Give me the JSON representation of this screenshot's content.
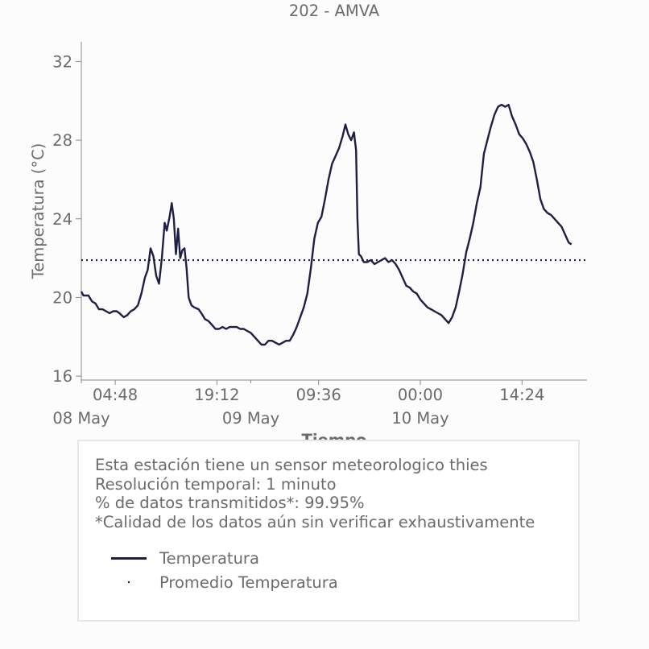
{
  "chart_data": {
    "type": "line",
    "title": "202 - AMVA",
    "xlabel": "Tiempo",
    "ylabel": "Temperatura (°C)",
    "ylim": [
      15.8,
      33.0
    ],
    "yticks": [
      16,
      20,
      24,
      28,
      32
    ],
    "xlim_hours": [
      0.0,
      71.6
    ],
    "xticks": [
      {
        "hour": 4.8,
        "label": "04:48"
      },
      {
        "hour": 19.2,
        "label": "19:12"
      },
      {
        "hour": 33.6,
        "label": "09:36"
      },
      {
        "hour": 48.0,
        "label": "00:00"
      },
      {
        "hour": 62.4,
        "label": "14:24"
      }
    ],
    "date_labels": [
      {
        "hour": 0,
        "label": "08 May"
      },
      {
        "hour": 24,
        "label": "09 May"
      },
      {
        "hour": 48,
        "label": "10 May"
      }
    ],
    "grid": false,
    "series": [
      {
        "name": "Temperatura",
        "color": "#1f1f45",
        "points": [
          [
            0.0,
            20.3
          ],
          [
            0.3,
            20.1
          ],
          [
            1.0,
            20.1
          ],
          [
            1.5,
            19.8
          ],
          [
            2.0,
            19.7
          ],
          [
            2.5,
            19.4
          ],
          [
            3.0,
            19.4
          ],
          [
            3.5,
            19.3
          ],
          [
            4.0,
            19.2
          ],
          [
            4.5,
            19.3
          ],
          [
            5.0,
            19.3
          ],
          [
            5.4,
            19.2
          ],
          [
            6.0,
            19.0
          ],
          [
            6.5,
            19.1
          ],
          [
            7.0,
            19.3
          ],
          [
            7.5,
            19.4
          ],
          [
            8.0,
            19.6
          ],
          [
            8.5,
            20.2
          ],
          [
            9.0,
            21.0
          ],
          [
            9.4,
            21.4
          ],
          [
            9.8,
            22.5
          ],
          [
            10.2,
            22.1
          ],
          [
            10.6,
            21.1
          ],
          [
            11.0,
            20.7
          ],
          [
            11.4,
            22.0
          ],
          [
            11.8,
            23.8
          ],
          [
            12.1,
            23.4
          ],
          [
            12.5,
            24.1
          ],
          [
            12.8,
            24.8
          ],
          [
            13.1,
            24.0
          ],
          [
            13.4,
            22.2
          ],
          [
            13.7,
            23.5
          ],
          [
            14.0,
            22.0
          ],
          [
            14.3,
            22.4
          ],
          [
            14.6,
            22.5
          ],
          [
            14.9,
            21.5
          ],
          [
            15.2,
            20.0
          ],
          [
            15.6,
            19.6
          ],
          [
            16.0,
            19.5
          ],
          [
            16.6,
            19.4
          ],
          [
            17.0,
            19.2
          ],
          [
            17.5,
            18.9
          ],
          [
            18.0,
            18.8
          ],
          [
            18.5,
            18.6
          ],
          [
            19.0,
            18.4
          ],
          [
            19.5,
            18.4
          ],
          [
            20.0,
            18.5
          ],
          [
            20.5,
            18.4
          ],
          [
            21.0,
            18.5
          ],
          [
            21.5,
            18.5
          ],
          [
            22.0,
            18.5
          ],
          [
            22.5,
            18.4
          ],
          [
            23.0,
            18.4
          ],
          [
            23.5,
            18.3
          ],
          [
            24.0,
            18.2
          ],
          [
            24.5,
            18.0
          ],
          [
            25.0,
            17.8
          ],
          [
            25.5,
            17.6
          ],
          [
            26.0,
            17.6
          ],
          [
            26.5,
            17.8
          ],
          [
            27.0,
            17.8
          ],
          [
            27.5,
            17.7
          ],
          [
            28.0,
            17.6
          ],
          [
            28.5,
            17.7
          ],
          [
            29.0,
            17.8
          ],
          [
            29.5,
            17.8
          ],
          [
            30.0,
            18.1
          ],
          [
            30.5,
            18.5
          ],
          [
            31.0,
            19.0
          ],
          [
            31.5,
            19.5
          ],
          [
            32.0,
            20.2
          ],
          [
            32.5,
            21.5
          ],
          [
            33.0,
            23.0
          ],
          [
            33.5,
            23.8
          ],
          [
            34.0,
            24.1
          ],
          [
            34.5,
            25.0
          ],
          [
            35.0,
            26.0
          ],
          [
            35.5,
            26.8
          ],
          [
            36.0,
            27.2
          ],
          [
            36.5,
            27.6
          ],
          [
            37.0,
            28.2
          ],
          [
            37.4,
            28.8
          ],
          [
            37.8,
            28.3
          ],
          [
            38.2,
            28.0
          ],
          [
            38.6,
            28.4
          ],
          [
            38.9,
            27.5
          ],
          [
            39.1,
            24.0
          ],
          [
            39.3,
            22.2
          ],
          [
            39.6,
            22.1
          ],
          [
            40.0,
            21.8
          ],
          [
            40.5,
            21.8
          ],
          [
            41.0,
            21.9
          ],
          [
            41.5,
            21.7
          ],
          [
            42.0,
            21.8
          ],
          [
            42.5,
            21.9
          ],
          [
            43.0,
            22.0
          ],
          [
            43.5,
            21.8
          ],
          [
            44.0,
            21.9
          ],
          [
            44.5,
            21.7
          ],
          [
            45.0,
            21.4
          ],
          [
            45.5,
            21.0
          ],
          [
            46.0,
            20.6
          ],
          [
            46.5,
            20.5
          ],
          [
            47.0,
            20.3
          ],
          [
            47.5,
            20.2
          ],
          [
            48.0,
            19.9
          ],
          [
            48.5,
            19.7
          ],
          [
            49.0,
            19.5
          ],
          [
            49.5,
            19.4
          ],
          [
            50.0,
            19.3
          ],
          [
            50.5,
            19.2
          ],
          [
            51.0,
            19.1
          ],
          [
            51.5,
            18.9
          ],
          [
            52.0,
            18.7
          ],
          [
            52.5,
            19.0
          ],
          [
            53.0,
            19.5
          ],
          [
            53.5,
            20.3
          ],
          [
            54.0,
            21.2
          ],
          [
            54.5,
            22.3
          ],
          [
            55.0,
            23.0
          ],
          [
            55.5,
            23.8
          ],
          [
            56.0,
            24.8
          ],
          [
            56.5,
            25.6
          ],
          [
            57.0,
            27.3
          ],
          [
            57.5,
            28.0
          ],
          [
            58.0,
            28.7
          ],
          [
            58.5,
            29.3
          ],
          [
            59.0,
            29.7
          ],
          [
            59.5,
            29.8
          ],
          [
            60.0,
            29.7
          ],
          [
            60.5,
            29.8
          ],
          [
            61.0,
            29.2
          ],
          [
            61.5,
            28.8
          ],
          [
            62.0,
            28.3
          ],
          [
            62.5,
            28.1
          ],
          [
            63.0,
            27.8
          ],
          [
            63.5,
            27.4
          ],
          [
            64.0,
            26.9
          ],
          [
            64.5,
            26.0
          ],
          [
            65.0,
            25.0
          ],
          [
            65.5,
            24.5
          ],
          [
            66.0,
            24.3
          ],
          [
            66.5,
            24.2
          ],
          [
            67.0,
            24.0
          ],
          [
            67.5,
            23.8
          ],
          [
            68.0,
            23.6
          ],
          [
            68.5,
            23.2
          ],
          [
            69.0,
            22.8
          ],
          [
            69.4,
            22.7
          ]
        ]
      },
      {
        "name": "Promedio Temperatura",
        "color": "#1f1f45",
        "constant": 21.9
      }
    ]
  },
  "info": {
    "lines": [
      "Esta estación tiene un sensor meteorologico thies",
      "Resolución temporal: 1 minuto",
      "% de datos transmitidos*: 99.95%",
      "*Calidad de los datos aún sin verificar exhaustivamente"
    ],
    "legend": [
      "Temperatura",
      "Promedio Temperatura"
    ]
  }
}
